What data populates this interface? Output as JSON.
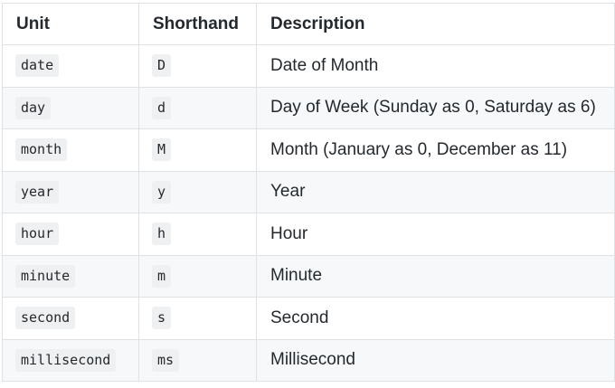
{
  "table": {
    "headers": {
      "unit": "Unit",
      "shorthand": "Shorthand",
      "description": "Description"
    },
    "rows": [
      {
        "unit": "date",
        "shorthand": "D",
        "description": "Date of Month"
      },
      {
        "unit": "day",
        "shorthand": "d",
        "description": "Day of Week (Sunday as 0, Saturday as 6)"
      },
      {
        "unit": "month",
        "shorthand": "M",
        "description": "Month (January as 0, December as 11)"
      },
      {
        "unit": "year",
        "shorthand": "y",
        "description": "Year"
      },
      {
        "unit": "hour",
        "shorthand": "h",
        "description": "Hour"
      },
      {
        "unit": "minute",
        "shorthand": "m",
        "description": "Minute"
      },
      {
        "unit": "second",
        "shorthand": "s",
        "description": "Second"
      },
      {
        "unit": "millisecond",
        "shorthand": "ms",
        "description": "Millisecond"
      }
    ]
  }
}
